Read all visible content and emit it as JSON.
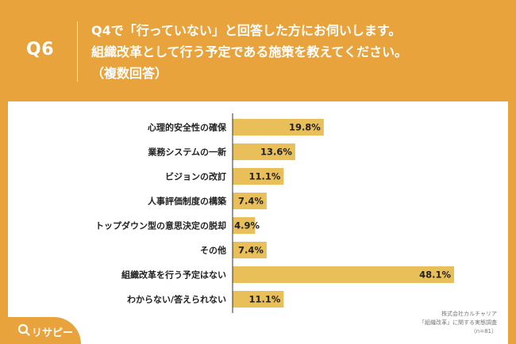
{
  "header": {
    "qnum": "Q6",
    "question_lines": [
      "Q4で「行っていない」と回答した方にお伺いします。",
      "組織改革として行う予定である施策を教えてください。",
      "（複数回答）"
    ]
  },
  "source": {
    "lines": [
      "株式会社カルチャリア",
      "「組織改革」に関する実態調査",
      "（n=81）"
    ]
  },
  "logo": {
    "text": "リサピー",
    "icon": "search-icon"
  },
  "colors": {
    "background": "#e9a33d",
    "bar": "#e9bf5a",
    "text": "#222222"
  },
  "chart_data": {
    "type": "bar",
    "orientation": "horizontal",
    "categories": [
      "心理的安全性の確保",
      "業務システムの一新",
      "ビジョンの改訂",
      "人事評価制度の構築",
      "トップダウン型の意思決定の脱却",
      "その他",
      "組織改革を行う予定はない",
      "わからない/答えられない"
    ],
    "values": [
      19.8,
      13.6,
      11.1,
      7.4,
      4.9,
      7.4,
      48.1,
      11.1
    ],
    "value_labels": [
      "19.8%",
      "13.6%",
      "11.1%",
      "7.4%",
      "4.9%",
      "7.4%",
      "48.1%",
      "11.1%"
    ],
    "xlim": [
      0,
      48.1
    ],
    "grid": false,
    "title": "",
    "xlabel": "",
    "ylabel": ""
  }
}
